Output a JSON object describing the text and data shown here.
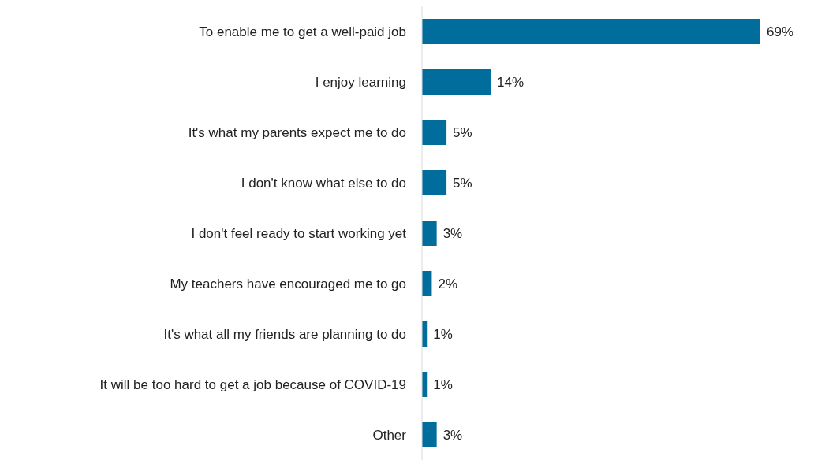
{
  "chart_data": {
    "type": "bar",
    "orientation": "horizontal",
    "categories": [
      "To enable me to get a well-paid job",
      "I enjoy learning",
      "It's what my parents expect me to do",
      "I don't know what else to do",
      "I don't feel ready to start working yet",
      "My teachers have encouraged me to go",
      "It's what all my friends are planning to do",
      "It will be too hard to get a job because of COVID-19",
      "Other"
    ],
    "values": [
      69,
      14,
      5,
      5,
      3,
      2,
      1,
      1,
      3
    ],
    "value_labels": [
      "69%",
      "14%",
      "5%",
      "5%",
      "3%",
      "2%",
      "1%",
      "1%",
      "3%"
    ],
    "color": "#006d9c"
  }
}
